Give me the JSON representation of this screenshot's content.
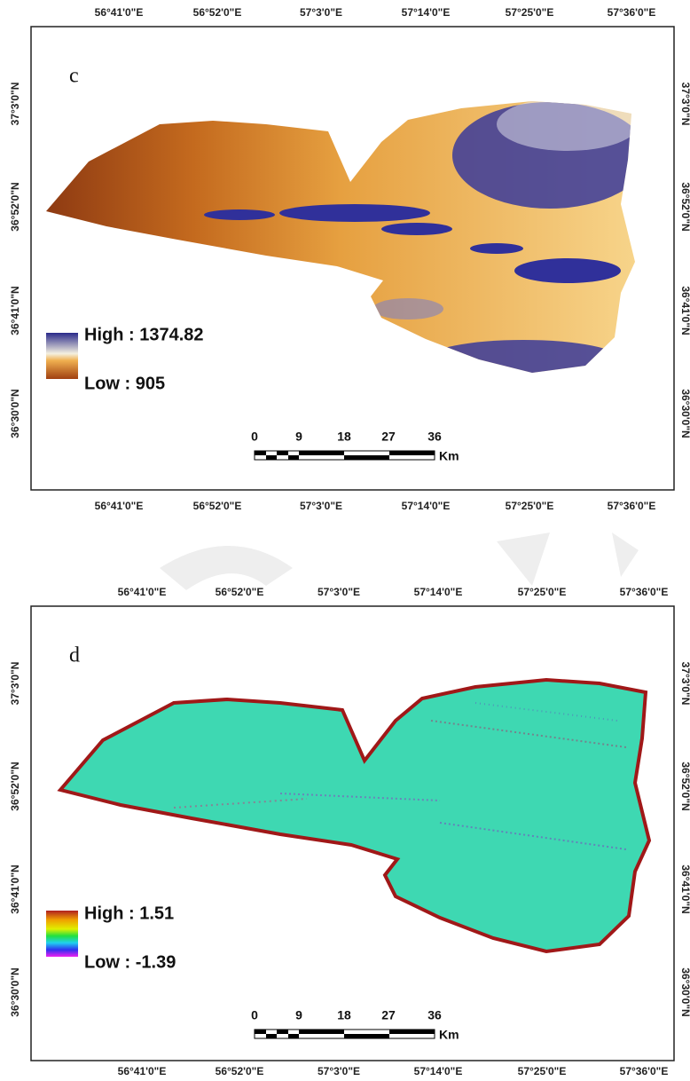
{
  "panels": [
    {
      "label": "c",
      "top_labels": [
        "56°41'0\"E",
        "56°52'0\"E",
        "57°3'0\"E",
        "57°14'0\"E",
        "57°25'0\"E",
        "57°36'0\"E"
      ],
      "bottom_labels": [
        "56°41'0\"E",
        "56°52'0\"E",
        "57°3'0\"E",
        "57°14'0\"E",
        "57°25'0\"E",
        "57°36'0\"E"
      ],
      "left_labels": [
        "37°3'0\"N",
        "36°52'0\"N",
        "36°41'0\"N",
        "36°30'0\"N"
      ],
      "right_labels": [
        "37°3'0\"N",
        "36°52'0\"N",
        "36°41'0\"N",
        "36°30'0\"N"
      ],
      "legend": {
        "high": "High : 1374.82",
        "low": "Low : 905"
      },
      "scale": {
        "ticks": [
          "0",
          "9",
          "18",
          "27",
          "36"
        ],
        "unit": "Km"
      }
    },
    {
      "label": "d",
      "top_labels": [
        "56°41'0\"E",
        "56°52'0\"E",
        "57°3'0\"E",
        "57°14'0\"E",
        "57°25'0\"E",
        "57°36'0\"E"
      ],
      "bottom_labels": [
        "56°41'0\"E",
        "56°52'0\"E",
        "57°3'0\"E",
        "57°14'0\"E",
        "57°25'0\"E",
        "57°36'0\"E"
      ],
      "left_labels": [
        "37°3'0\"N",
        "36°52'0\"N",
        "36°41'0\"N",
        "36°30'0\"N"
      ],
      "right_labels": [
        "37°3'0\"N",
        "36°52'0\"N",
        "36°41'0\"N",
        "36°30'0\"N"
      ],
      "legend": {
        "high": "High : 1.51",
        "low": "Low : -1.39"
      },
      "scale": {
        "ticks": [
          "0",
          "9",
          "18",
          "27",
          "36"
        ],
        "unit": "Km"
      }
    }
  ]
}
